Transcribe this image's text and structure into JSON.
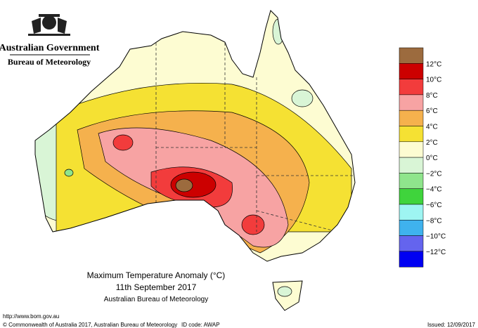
{
  "header": {
    "government": "Australian Government",
    "agency": "Bureau of Meteorology"
  },
  "map": {
    "title": "Maximum Temperature Anomaly (°C)",
    "date": "11th September 2017",
    "source": "Australian Bureau of Meteorology"
  },
  "legend": {
    "colors": [
      "#9c6b3e",
      "#cc0000",
      "#f23c3c",
      "#f7a3a3",
      "#f5b14d",
      "#f5e133",
      "#fdfcd2",
      "#d9f5d6",
      "#8fe58c",
      "#3fd43c",
      "#9ef5f2",
      "#3fb2ee",
      "#6464ee",
      "#0000f2"
    ],
    "labels": [
      "12°C",
      "10°C",
      "8°C",
      "6°C",
      "4°C",
      "2°C",
      "0°C",
      "−2°C",
      "−4°C",
      "−6°C",
      "−8°C",
      "−10°C",
      "−12°C"
    ]
  },
  "footer": {
    "url": "http://www.bom.gov.au",
    "copyright": "© Commonwealth of Australia 2017, Australian Bureau of Meteorology",
    "id_code": "ID code: AWAP",
    "issued": "Issued: 12/09/2017"
  }
}
